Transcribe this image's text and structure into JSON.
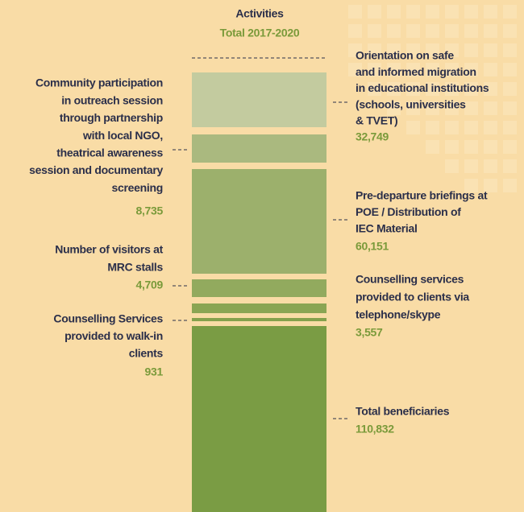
{
  "header": {
    "title": "Activities",
    "subtitle": "Total 2017-2020"
  },
  "items": [
    {
      "label_lines": [
        "Orientation on safe",
        "and informed migration",
        "in educational institutions",
        "(schools, universities",
        "& TVET)"
      ],
      "value": "32,749"
    },
    {
      "label_lines": [
        "Community participation",
        "in outreach session",
        "through partnership",
        "with local NGO,",
        "theatrical awareness",
        "session and documentary",
        "screening"
      ],
      "value": "8,735"
    },
    {
      "label_lines": [
        "Pre-departure briefings at",
        "POE / Distribution of",
        "IEC Material"
      ],
      "value": "60,151"
    },
    {
      "label_lines": [
        "Number of visitors at",
        "MRC stalls"
      ],
      "value": "4,709"
    },
    {
      "label_lines": [
        "Counselling services",
        "provided to clients via",
        "telephone/skype"
      ],
      "value": "3,557"
    },
    {
      "label_lines": [
        "Counselling Services",
        "provided to walk-in",
        "clients"
      ],
      "value": "931"
    },
    {
      "label_lines": [
        "Total beneficiaries"
      ],
      "value": "110,832"
    }
  ]
}
